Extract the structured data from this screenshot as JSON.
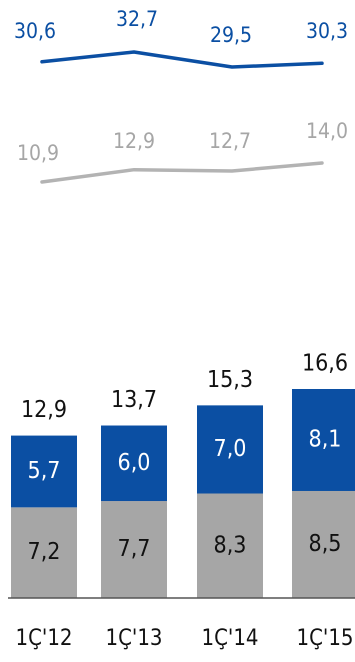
{
  "colors": {
    "blue": "#0b4fa3",
    "grey": "#a6a6a6",
    "line_grey": "#b3b3b3",
    "axis": "#555555"
  },
  "chart_data": [
    {
      "type": "line",
      "categories": [
        "1Ç'12",
        "1Ç'13",
        "1Ç'14",
        "1Ç'15"
      ],
      "series": [
        {
          "values": [
            30.6,
            32.7,
            29.5,
            30.3
          ],
          "labels": [
            "30,6",
            "32,7",
            "29,5",
            "30,3"
          ],
          "color": "#0b4fa3"
        }
      ]
    },
    {
      "type": "line",
      "categories": [
        "1Ç'12",
        "1Ç'13",
        "1Ç'14",
        "1Ç'15"
      ],
      "series": [
        {
          "values": [
            10.9,
            12.9,
            12.7,
            14.0
          ],
          "labels": [
            "10,9",
            "12,9",
            "12,7",
            "14,0"
          ],
          "color": "#b3b3b3"
        }
      ]
    },
    {
      "type": "bar",
      "stacked": true,
      "categories": [
        "1Ç'12",
        "1Ç'13",
        "1Ç'14",
        "1Ç'15"
      ],
      "series": [
        {
          "values": [
            7.2,
            7.7,
            8.3,
            8.5
          ],
          "labels": [
            "7,2",
            "7,7",
            "8,3",
            "8,5"
          ],
          "color": "#a6a6a6"
        },
        {
          "values": [
            5.7,
            6.0,
            7.0,
            8.1
          ],
          "labels": [
            "5,7",
            "6,0",
            "7,0",
            "8,1"
          ],
          "color": "#0b4fa3"
        }
      ],
      "totals": [
        12.9,
        13.7,
        15.3,
        16.6
      ],
      "total_labels": [
        "12,9",
        "13,7",
        "15,3",
        "16,6"
      ],
      "ylim": [
        0,
        16.6
      ]
    }
  ]
}
